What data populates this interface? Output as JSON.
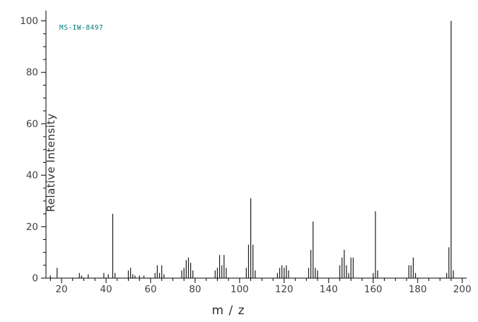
{
  "chart": {
    "annotation": "MS-IW-8497",
    "x_axis_label": "m / z",
    "y_axis_label": "Relative Intensity"
  },
  "chart_data": {
    "type": "bar",
    "subtype": "mass-spectrum",
    "title": "",
    "xlabel": "m / z",
    "ylabel": "Relative Intensity",
    "annotation": "MS-IW-8497",
    "xlim": [
      13,
      202
    ],
    "ylim": [
      0,
      104
    ],
    "x_major_ticks": [
      20,
      40,
      60,
      80,
      100,
      120,
      140,
      160,
      180,
      200
    ],
    "y_major_ticks": [
      0,
      20,
      40,
      60,
      80,
      100
    ],
    "minor_tick_step_x": 5,
    "minor_tick_step_y": 5,
    "grid": false,
    "legend": false,
    "colors": {
      "bar": "#1a1a1a",
      "axis": "#000000",
      "tick_label": "#404040",
      "annotation": "#007a7a"
    },
    "peaks": [
      [
        15,
        1
      ],
      [
        18,
        4
      ],
      [
        28,
        2
      ],
      [
        29,
        1
      ],
      [
        32,
        1.5
      ],
      [
        39,
        2
      ],
      [
        41,
        1.5
      ],
      [
        43,
        25
      ],
      [
        44,
        2
      ],
      [
        50,
        3
      ],
      [
        51,
        4
      ],
      [
        52,
        1.5
      ],
      [
        53,
        1
      ],
      [
        55,
        1
      ],
      [
        57,
        1
      ],
      [
        62,
        2
      ],
      [
        63,
        5
      ],
      [
        64,
        2
      ],
      [
        65,
        5
      ],
      [
        66,
        1.5
      ],
      [
        74,
        3
      ],
      [
        75,
        4
      ],
      [
        76,
        7
      ],
      [
        77,
        8
      ],
      [
        78,
        6
      ],
      [
        79,
        3
      ],
      [
        89,
        3
      ],
      [
        90,
        4
      ],
      [
        91,
        9
      ],
      [
        92,
        5
      ],
      [
        93,
        9
      ],
      [
        94,
        4
      ],
      [
        103,
        4
      ],
      [
        104,
        13
      ],
      [
        105,
        31
      ],
      [
        106,
        13
      ],
      [
        107,
        3
      ],
      [
        117,
        2
      ],
      [
        118,
        4
      ],
      [
        119,
        5
      ],
      [
        120,
        4
      ],
      [
        121,
        5
      ],
      [
        122,
        3
      ],
      [
        131,
        4
      ],
      [
        132,
        11
      ],
      [
        133,
        22
      ],
      [
        134,
        4
      ],
      [
        135,
        3
      ],
      [
        145,
        5
      ],
      [
        146,
        8
      ],
      [
        147,
        11
      ],
      [
        148,
        5
      ],
      [
        149,
        2
      ],
      [
        150,
        8
      ],
      [
        151,
        8
      ],
      [
        160,
        2
      ],
      [
        161,
        26
      ],
      [
        162,
        3
      ],
      [
        176,
        5
      ],
      [
        177,
        5
      ],
      [
        178,
        8
      ],
      [
        179,
        2
      ],
      [
        193,
        2
      ],
      [
        194,
        12
      ],
      [
        195,
        100
      ],
      [
        196,
        3
      ]
    ]
  }
}
